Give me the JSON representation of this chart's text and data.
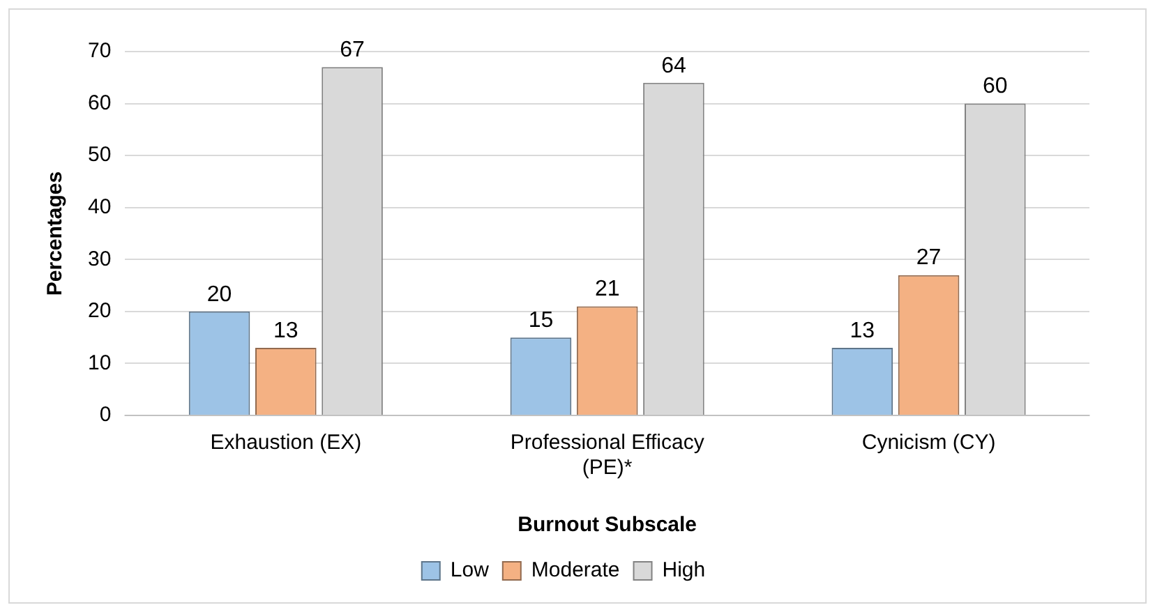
{
  "chart_data": {
    "type": "bar",
    "xlabel": "Burnout Subscale",
    "ylabel": "Percentages",
    "categories": [
      "Exhaustion (EX)",
      "Professional Efficacy (PE)*",
      "Cynicism (CY)"
    ],
    "series": [
      {
        "name": "Low",
        "color": "#9dc3e6",
        "values": [
          20,
          15,
          13
        ]
      },
      {
        "name": "Moderate",
        "color": "#f4b183",
        "values": [
          13,
          21,
          27
        ]
      },
      {
        "name": "High",
        "color": "#d9d9d9",
        "values": [
          67,
          64,
          60
        ]
      }
    ],
    "ylim": [
      0,
      70
    ],
    "yticks": [
      0,
      10,
      20,
      30,
      40,
      50,
      60,
      70
    ],
    "grid": "y",
    "legend": "bottom",
    "data_labels": true
  }
}
